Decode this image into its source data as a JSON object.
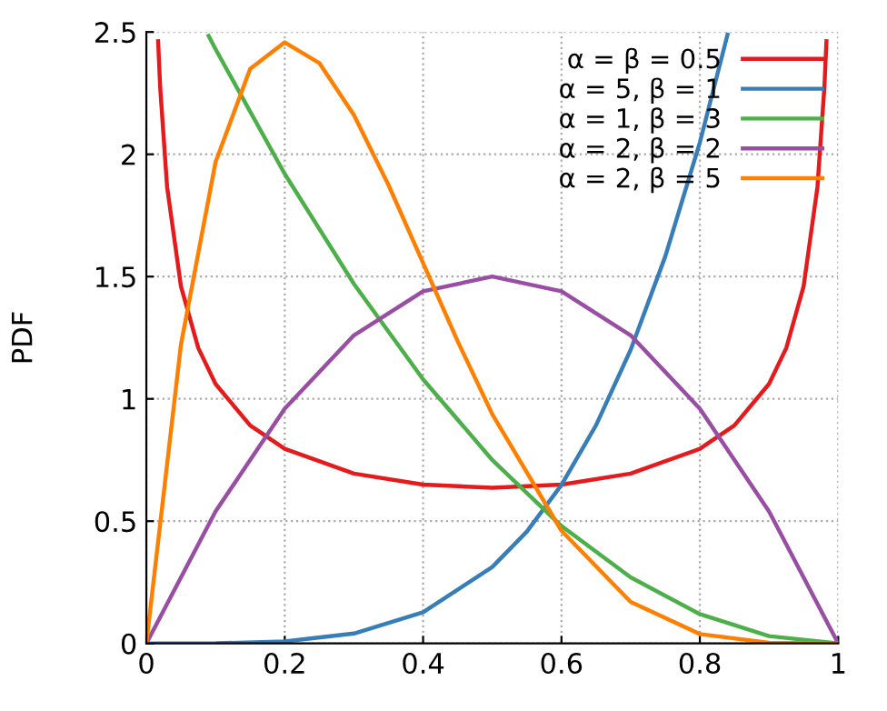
{
  "chart_data": {
    "type": "line",
    "ylabel": "PDF",
    "xlim": [
      0,
      1
    ],
    "xticks": [
      0,
      0.2,
      0.4,
      0.6,
      0.8,
      1
    ],
    "ylim": [
      0,
      2.5
    ],
    "yticks": [
      0,
      0.5,
      1,
      1.5,
      2,
      2.5
    ],
    "grid": true,
    "legend": "top right",
    "marker": "none",
    "line_style": "solid",
    "series": [
      {
        "name": "α = β = 0.5",
        "color": "#e41a1c",
        "x": [
          0.017,
          0.02,
          0.03,
          0.05,
          0.075,
          0.1,
          0.15,
          0.2,
          0.3,
          0.4,
          0.5,
          0.6,
          0.7,
          0.8,
          0.85,
          0.9,
          0.925,
          0.95,
          0.97,
          0.98,
          0.983
        ],
        "values": [
          2.462,
          2.274,
          1.866,
          1.4605,
          1.2085,
          1.061,
          0.8914,
          0.7958,
          0.6946,
          0.6497,
          0.6366,
          0.6497,
          0.6946,
          0.7958,
          0.8914,
          1.061,
          1.2085,
          1.4605,
          1.866,
          2.274,
          2.462
        ]
      },
      {
        "name": "α = 5, β = 1",
        "color": "#377eb8",
        "x": [
          0,
          0.1,
          0.2,
          0.3,
          0.4,
          0.5,
          0.55,
          0.6,
          0.65,
          0.7,
          0.75,
          0.8,
          0.84
        ],
        "values": [
          0,
          0.0005,
          0.008,
          0.0405,
          0.128,
          0.3125,
          0.4575,
          0.648,
          0.8925,
          1.2005,
          1.582,
          2.048,
          2.489
        ]
      },
      {
        "name": "α = 1, β = 3",
        "color": "#4daf4a",
        "x": [
          0.09,
          0.1,
          0.2,
          0.3,
          0.4,
          0.5,
          0.6,
          0.7,
          0.8,
          0.9,
          1
        ],
        "values": [
          2.484,
          2.43,
          1.92,
          1.47,
          1.08,
          0.75,
          0.48,
          0.27,
          0.12,
          0.03,
          0
        ]
      },
      {
        "name": "α = 2, β = 2",
        "color": "#984ea3",
        "x": [
          0,
          0.1,
          0.2,
          0.3,
          0.4,
          0.5,
          0.6,
          0.7,
          0.8,
          0.9,
          1
        ],
        "values": [
          0,
          0.54,
          0.96,
          1.26,
          1.44,
          1.5,
          1.44,
          1.26,
          0.96,
          0.54,
          0
        ]
      },
      {
        "name": "α = 2, β = 5",
        "color": "#ff7f00",
        "x": [
          0,
          0.05,
          0.1,
          0.15,
          0.2,
          0.25,
          0.3,
          0.35,
          0.4,
          0.45,
          0.5,
          0.6,
          0.7,
          0.8,
          0.9,
          1
        ],
        "values": [
          0,
          1.2218,
          1.9683,
          2.349,
          2.4576,
          2.373,
          2.1609,
          1.8744,
          1.5552,
          1.2353,
          0.9375,
          0.4608,
          0.1701,
          0.0384,
          0.0027,
          0
        ]
      }
    ]
  }
}
